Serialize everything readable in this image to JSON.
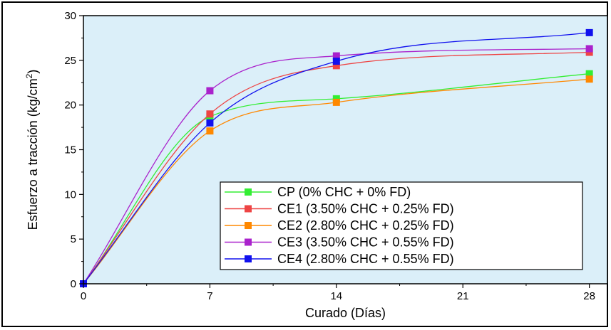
{
  "chart_data": {
    "type": "line",
    "xlabel": "Curado (Días)",
    "ylabel": "Esfuerzo a tracción (kg/cm",
    "ylabel_sup": "2",
    "ylabel_end": ")",
    "xlim": [
      0,
      29
    ],
    "ylim": [
      0,
      30
    ],
    "x": [
      0,
      7,
      14,
      28
    ],
    "x_ticks": [
      0,
      7,
      14,
      21,
      28
    ],
    "y_ticks": [
      0,
      5,
      10,
      15,
      20,
      25,
      30
    ],
    "plot_background": "#dbeff9",
    "legend_position": "bottom-right",
    "series": [
      {
        "name": "CP (0% CHC + 0% FD)",
        "color": "#33ee33",
        "values": [
          0,
          18.7,
          20.7,
          23.5
        ]
      },
      {
        "name": "CE1 (3.50% CHC + 0.25% FD)",
        "color": "#ee4444",
        "values": [
          0,
          19.0,
          24.4,
          25.9
        ]
      },
      {
        "name": "CE2 (2.80% CHC + 0.25% FD)",
        "color": "#ff8800",
        "values": [
          0,
          17.1,
          20.3,
          22.9
        ]
      },
      {
        "name": "CE3 (3.50% CHC + 0.55% FD)",
        "color": "#aa22cc",
        "values": [
          0,
          21.6,
          25.5,
          26.3
        ]
      },
      {
        "name": "CE4 (2.80% CHC + 0.55% FD)",
        "color": "#1111ee",
        "values": [
          0,
          18.0,
          24.9,
          28.1
        ]
      }
    ]
  }
}
